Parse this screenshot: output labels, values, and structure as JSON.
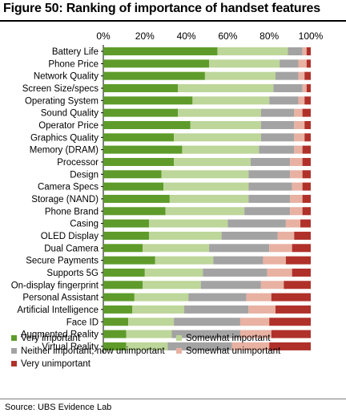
{
  "title": "Figure 50: Ranking of importance of handset features",
  "source": "Source: UBS Evidence Lab",
  "colors": {
    "very_important": "#5e9b2b",
    "somewhat_important": "#bdd699",
    "neither": "#a3a3a3",
    "somewhat_unimportant": "#e8b1a2",
    "very_unimportant": "#b0312a"
  },
  "chart_data": {
    "type": "bar",
    "orientation": "horizontal",
    "stacked": true,
    "percent_stacked": true,
    "xlim": [
      0,
      100
    ],
    "xticks": [
      "0%",
      "20%",
      "40%",
      "60%",
      "80%",
      "100%"
    ],
    "grid": false,
    "legend_position": "bottom",
    "categories": [
      "Battery Life",
      "Phone Price",
      "Network Quality",
      "Screen Size/specs",
      "Operating System",
      "Sound Quality",
      "Operator Price",
      "Graphics Quality",
      "Memory (DRAM)",
      "Processor",
      "Design",
      "Camera Specs",
      "Storage (NAND)",
      "Phone Brand",
      "Casing",
      "OLED Display",
      "Dual Camera",
      "Secure Payments",
      "Supports 5G",
      "On-display fingerprint",
      "Personal Assistant",
      "Artificial Intelligence",
      "Face ID",
      "Augmented Reality",
      "Virtual Reality"
    ],
    "series": [
      {
        "name": "Very important",
        "color": "#5e9b2b",
        "values": [
          55,
          51,
          49,
          36,
          43,
          36,
          42,
          34,
          38,
          34,
          28,
          29,
          32,
          30,
          22,
          22,
          19,
          25,
          20,
          19,
          15,
          14,
          12,
          11,
          11
        ]
      },
      {
        "name": "Somewhat important",
        "color": "#bdd699",
        "values": [
          34,
          34,
          34,
          46,
          37,
          40,
          34,
          42,
          37,
          37,
          42,
          41,
          38,
          38,
          38,
          35,
          32,
          28,
          28,
          28,
          26,
          25,
          22,
          22,
          20
        ]
      },
      {
        "name": "Neither important, now unimportant",
        "color": "#a3a3a3",
        "values": [
          7,
          9,
          11,
          14,
          14,
          16,
          16,
          16,
          17,
          19,
          20,
          21,
          20,
          22,
          28,
          27,
          29,
          24,
          31,
          29,
          28,
          31,
          32,
          33,
          31
        ]
      },
      {
        "name": "Somewhat unimportant",
        "color": "#e8b1a2",
        "values": [
          2,
          4,
          3,
          2,
          3,
          4,
          5,
          5,
          4,
          6,
          6,
          5,
          6,
          6,
          7,
          8,
          11,
          11,
          12,
          11,
          12,
          13,
          14,
          15,
          18
        ]
      },
      {
        "name": "Very unimportant",
        "color": "#b0312a",
        "values": [
          2,
          2,
          3,
          2,
          3,
          4,
          3,
          3,
          4,
          4,
          4,
          4,
          4,
          4,
          5,
          8,
          9,
          12,
          9,
          13,
          19,
          17,
          20,
          19,
          20
        ]
      }
    ]
  }
}
